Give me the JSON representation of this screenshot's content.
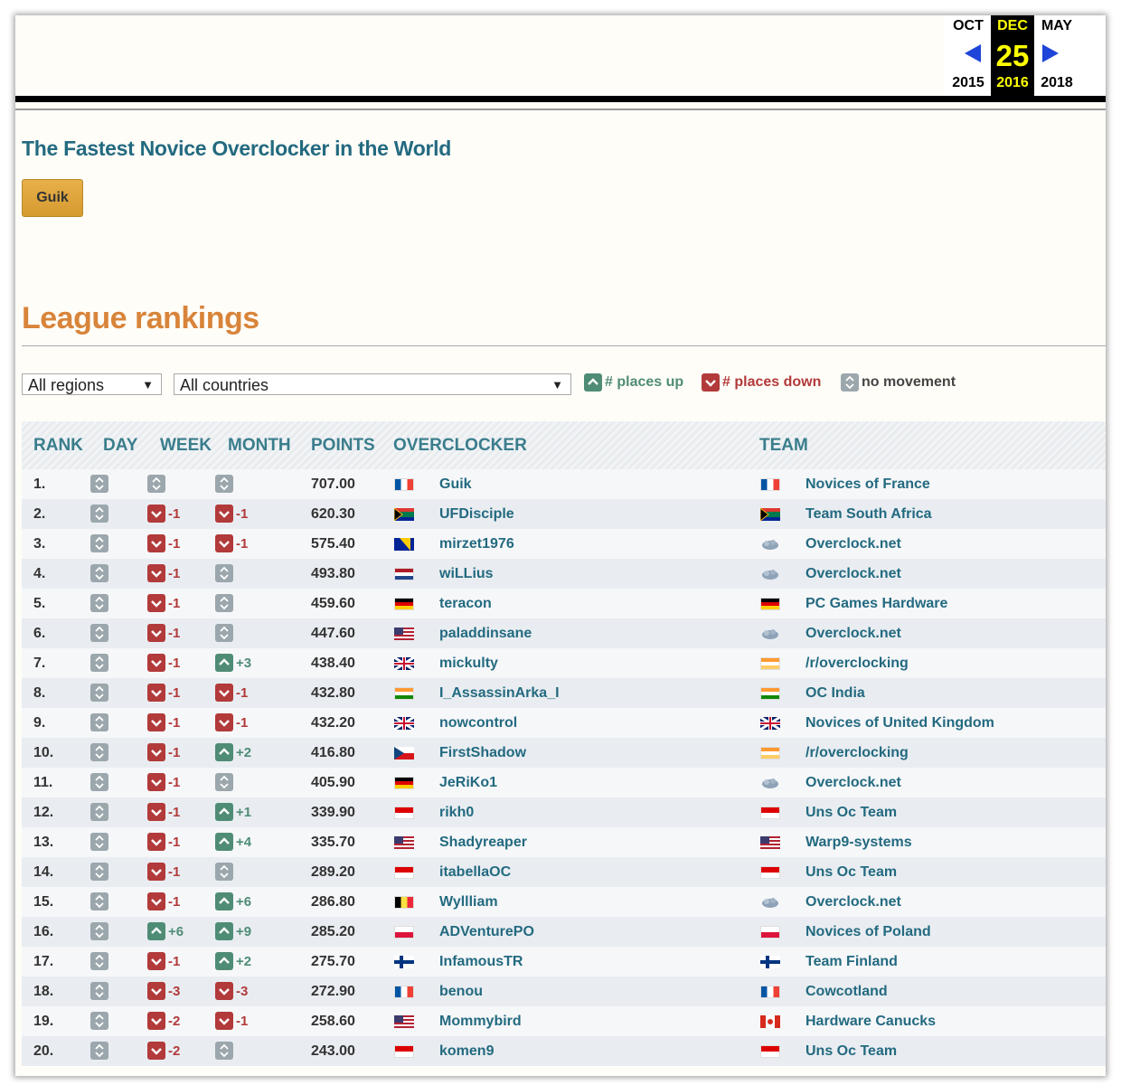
{
  "wayback": {
    "months": [
      "OCT",
      "DEC",
      "MAY"
    ],
    "day": "25",
    "years": [
      "2015",
      "2016",
      "2018"
    ]
  },
  "header": {
    "title": "The Fastest Novice Overclocker in the World",
    "button": "Guik"
  },
  "rankings": {
    "heading": "League rankings",
    "filters": [
      "All regions",
      "All countries"
    ],
    "legend": [
      "# places up",
      "# places down",
      "no movement"
    ],
    "columns": [
      "RANK",
      "DAY",
      "WEEK",
      "MONTH",
      "POINTS",
      "OVERCLOCKER",
      "TEAM"
    ],
    "rows": [
      {
        "rank": "1.",
        "day": null,
        "week": null,
        "month": null,
        "points": "707.00",
        "overclocker": "Guik",
        "team": "Novices of France"
      },
      {
        "rank": "2.",
        "day": null,
        "week": "-1",
        "month": "-1",
        "points": "620.30",
        "overclocker": "UFDisciple",
        "team": "Team South Africa"
      },
      {
        "rank": "3.",
        "day": null,
        "week": "-1",
        "month": "-1",
        "points": "575.40",
        "overclocker": "mirzet1976",
        "team": "Overclock.net"
      },
      {
        "rank": "4.",
        "day": null,
        "week": "-1",
        "month": null,
        "points": "493.80",
        "overclocker": "wiLLius",
        "team": "Overclock.net"
      },
      {
        "rank": "5.",
        "day": null,
        "week": "-1",
        "month": null,
        "points": "459.60",
        "overclocker": "teracon",
        "team": "PC Games Hardware"
      },
      {
        "rank": "6.",
        "day": null,
        "week": "-1",
        "month": null,
        "points": "447.60",
        "overclocker": "paladdinsane",
        "team": "Overclock.net"
      },
      {
        "rank": "7.",
        "day": null,
        "week": "-1",
        "month": "+3",
        "points": "438.40",
        "overclocker": "mickulty",
        "team": "/r/overclocking"
      },
      {
        "rank": "8.",
        "day": null,
        "week": "-1",
        "month": "-1",
        "points": "432.80",
        "overclocker": "I_AssassinArka_I",
        "team": "OC India"
      },
      {
        "rank": "9.",
        "day": null,
        "week": "-1",
        "month": "-1",
        "points": "432.20",
        "overclocker": "nowcontrol",
        "team": "Novices of United Kingdom"
      },
      {
        "rank": "10.",
        "day": null,
        "week": "-1",
        "month": "+2",
        "points": "416.80",
        "overclocker": "FirstShadow",
        "team": "/r/overclocking"
      },
      {
        "rank": "11.",
        "day": null,
        "week": "-1",
        "month": null,
        "points": "405.90",
        "overclocker": "JeRiKo1",
        "team": "Overclock.net"
      },
      {
        "rank": "12.",
        "day": null,
        "week": "-1",
        "month": "+1",
        "points": "339.90",
        "overclocker": "rikh0",
        "team": "Uns Oc Team"
      },
      {
        "rank": "13.",
        "day": null,
        "week": "-1",
        "month": "+4",
        "points": "335.70",
        "overclocker": "Shadyreaper",
        "team": "Warp9-systems"
      },
      {
        "rank": "14.",
        "day": null,
        "week": "-1",
        "month": null,
        "points": "289.20",
        "overclocker": "itabellaOC",
        "team": "Uns Oc Team"
      },
      {
        "rank": "15.",
        "day": null,
        "week": "-1",
        "month": "+6",
        "points": "286.80",
        "overclocker": "Wyllliam",
        "team": "Overclock.net"
      },
      {
        "rank": "16.",
        "day": null,
        "week": "+6",
        "month": "+9",
        "points": "285.20",
        "overclocker": "ADVenturePO",
        "team": "Novices of Poland"
      },
      {
        "rank": "17.",
        "day": null,
        "week": "-1",
        "month": "+2",
        "points": "275.70",
        "overclocker": "InfamousTR",
        "team": "Team Finland"
      },
      {
        "rank": "18.",
        "day": null,
        "week": "-3",
        "month": "-3",
        "points": "272.90",
        "overclocker": "benou",
        "team": "Cowcotland"
      },
      {
        "rank": "19.",
        "day": null,
        "week": "-2",
        "month": "-1",
        "points": "258.60",
        "overclocker": "Mommybird",
        "team": "Hardware Canucks"
      },
      {
        "rank": "20.",
        "day": null,
        "week": "-2",
        "month": null,
        "points": "243.00",
        "overclocker": "komen9",
        "team": "Uns Oc Team"
      }
    ]
  }
}
